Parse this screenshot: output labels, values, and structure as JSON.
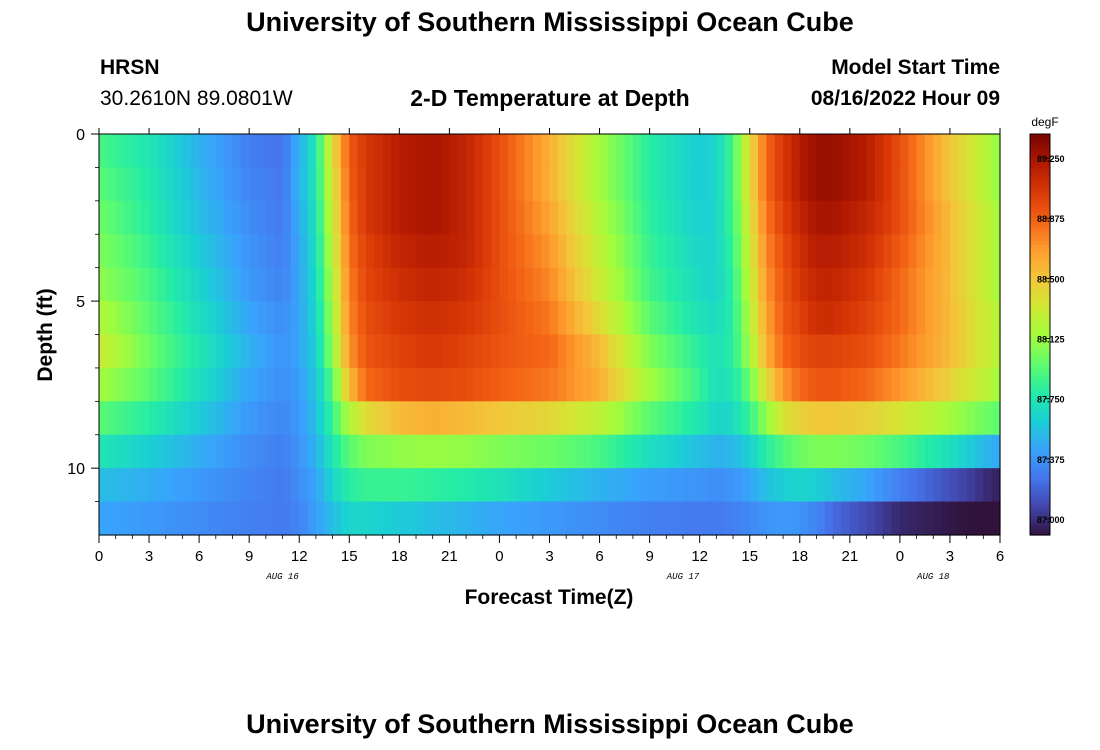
{
  "header": {
    "title": "University of Southern Mississippi Ocean Cube",
    "station": "HRSN",
    "coords": "30.2610N  89.0801W",
    "plot_title": "2-D Temperature at Depth",
    "model_start_label": "Model Start Time",
    "model_start_value": "08/16/2022 Hour 09",
    "repeated_title": "University of Southern Mississippi Ocean Cube"
  },
  "chart_data": {
    "type": "heatmap",
    "title": "2-D Temperature at Depth",
    "xlabel": "Forecast Time(Z)",
    "ylabel": "Depth (ft)",
    "x_tick_labels": [
      "0",
      "3",
      "6",
      "9",
      "12",
      "15",
      "18",
      "21",
      "0",
      "3",
      "6",
      "9",
      "12",
      "15",
      "18",
      "21",
      "0",
      "3",
      "6"
    ],
    "x_date_labels": [
      {
        "label": "AUG 16",
        "tick_index": 11
      },
      {
        "label": "AUG 17",
        "tick_index": 35
      },
      {
        "label": "AUG 18",
        "tick_index": 50
      }
    ],
    "x_range_hours": [
      0,
      54
    ],
    "y_tick_labels": [
      "0",
      "5",
      "10"
    ],
    "y_range_ft": [
      0,
      12
    ],
    "colorbar": {
      "unit": "degF",
      "range": [
        86.9,
        89.4
      ],
      "tick_labels": [
        "89.250",
        "88.875",
        "88.500",
        "88.125",
        "87.750",
        "87.375",
        "87.000"
      ],
      "tick_values": [
        89.25,
        88.875,
        88.5,
        88.125,
        87.75,
        87.375,
        87.0
      ]
    },
    "depth_rows_ft": [
      0.5,
      1.5,
      2.5,
      3.5,
      4.5,
      5.5,
      6.5,
      7.5,
      8.5,
      9.5,
      10.5,
      11.5
    ],
    "key_times_hours": [
      0,
      3,
      6,
      9,
      11,
      12,
      13,
      14,
      15,
      16,
      18,
      20,
      22,
      24,
      27,
      30,
      33,
      36,
      37,
      38,
      39,
      40,
      41,
      42,
      43,
      44,
      46,
      48,
      51,
      54
    ],
    "temperature_degF": [
      [
        87.9,
        87.75,
        87.5,
        87.3,
        87.25,
        87.5,
        87.75,
        88.4,
        88.9,
        89.05,
        89.2,
        89.25,
        89.15,
        88.95,
        88.6,
        88.15,
        87.8,
        87.6,
        87.65,
        87.9,
        88.4,
        88.85,
        89.05,
        89.2,
        89.3,
        89.3,
        89.2,
        88.95,
        88.5,
        88.1
      ],
      [
        87.95,
        87.78,
        87.52,
        87.32,
        87.27,
        87.5,
        87.75,
        88.35,
        88.88,
        89.05,
        89.2,
        89.25,
        89.15,
        88.95,
        88.6,
        88.15,
        87.8,
        87.6,
        87.65,
        87.9,
        88.4,
        88.85,
        89.05,
        89.2,
        89.3,
        89.3,
        89.2,
        88.95,
        88.5,
        88.1
      ],
      [
        88.0,
        87.8,
        87.55,
        87.35,
        87.28,
        87.48,
        87.72,
        88.3,
        88.85,
        89.05,
        89.2,
        89.25,
        89.15,
        88.95,
        88.65,
        88.2,
        87.82,
        87.62,
        87.65,
        87.88,
        88.35,
        88.8,
        89.0,
        89.15,
        89.25,
        89.25,
        89.15,
        88.95,
        88.55,
        88.15
      ],
      [
        88.05,
        87.85,
        87.6,
        87.38,
        87.3,
        87.45,
        87.7,
        88.25,
        88.82,
        89.0,
        89.15,
        89.2,
        89.15,
        88.95,
        88.7,
        88.25,
        87.85,
        87.65,
        87.65,
        87.85,
        88.3,
        88.75,
        88.95,
        89.1,
        89.2,
        89.2,
        89.1,
        88.9,
        88.55,
        88.15
      ],
      [
        88.1,
        87.9,
        87.65,
        87.4,
        87.32,
        87.45,
        87.68,
        88.2,
        88.78,
        88.98,
        89.1,
        89.15,
        89.1,
        88.95,
        88.75,
        88.3,
        87.88,
        87.68,
        87.65,
        87.82,
        88.25,
        88.7,
        88.92,
        89.05,
        89.15,
        89.15,
        89.05,
        88.85,
        88.55,
        88.15
      ],
      [
        88.2,
        87.95,
        87.7,
        87.45,
        87.35,
        87.45,
        87.65,
        88.15,
        88.75,
        88.95,
        89.05,
        89.1,
        89.05,
        88.95,
        88.8,
        88.4,
        87.95,
        87.72,
        87.68,
        87.8,
        88.2,
        88.65,
        88.9,
        89.0,
        89.1,
        89.1,
        89.0,
        88.85,
        88.55,
        88.2
      ],
      [
        88.3,
        88.0,
        87.75,
        87.5,
        87.38,
        87.45,
        87.62,
        88.1,
        88.7,
        88.92,
        89.0,
        89.05,
        89.0,
        88.92,
        88.85,
        88.55,
        88.05,
        87.8,
        87.72,
        87.8,
        88.15,
        88.6,
        88.85,
        88.95,
        89.0,
        89.0,
        88.95,
        88.8,
        88.55,
        88.2
      ],
      [
        88.15,
        87.95,
        87.7,
        87.45,
        87.36,
        87.42,
        87.58,
        87.95,
        88.55,
        88.85,
        88.95,
        88.98,
        88.95,
        88.88,
        88.8,
        88.6,
        88.15,
        87.85,
        87.7,
        87.75,
        88.0,
        88.4,
        88.7,
        88.85,
        88.92,
        88.92,
        88.85,
        88.7,
        88.45,
        88.15
      ],
      [
        87.95,
        87.8,
        87.6,
        87.4,
        87.33,
        87.4,
        87.55,
        87.85,
        88.2,
        88.4,
        88.55,
        88.6,
        88.55,
        88.5,
        88.42,
        88.25,
        87.95,
        87.75,
        87.65,
        87.68,
        87.85,
        88.1,
        88.35,
        88.45,
        88.5,
        88.5,
        88.45,
        88.35,
        88.15,
        87.95
      ],
      [
        87.75,
        87.62,
        87.48,
        87.35,
        87.3,
        87.38,
        87.5,
        87.75,
        87.95,
        88.05,
        88.1,
        88.12,
        88.1,
        88.05,
        88.0,
        87.9,
        87.7,
        87.55,
        87.5,
        87.52,
        87.62,
        87.8,
        87.92,
        88.0,
        88.05,
        88.05,
        88.0,
        87.9,
        87.7,
        87.45
      ],
      [
        87.55,
        87.48,
        87.4,
        87.32,
        87.28,
        87.35,
        87.45,
        87.65,
        87.8,
        87.85,
        87.85,
        87.82,
        87.78,
        87.72,
        87.6,
        87.5,
        87.42,
        87.38,
        87.36,
        87.38,
        87.45,
        87.55,
        87.62,
        87.65,
        87.62,
        87.55,
        87.45,
        87.3,
        87.12,
        86.95
      ],
      [
        87.45,
        87.4,
        87.35,
        87.3,
        87.28,
        87.32,
        87.42,
        87.55,
        87.65,
        87.65,
        87.6,
        87.55,
        87.5,
        87.45,
        87.4,
        87.35,
        87.3,
        87.28,
        87.28,
        87.3,
        87.34,
        87.38,
        87.4,
        87.38,
        87.32,
        87.22,
        87.1,
        86.98,
        86.92,
        86.88
      ]
    ]
  },
  "colors": {
    "colormap": [
      "#30123b",
      "#4145ab",
      "#4675ed",
      "#39a2fc",
      "#1bcfd4",
      "#24eca6",
      "#61fc6c",
      "#a4fc3b",
      "#d1e834",
      "#f3c63a",
      "#fe9b2d",
      "#f36315",
      "#d93806",
      "#b11901",
      "#7a0402"
    ]
  }
}
